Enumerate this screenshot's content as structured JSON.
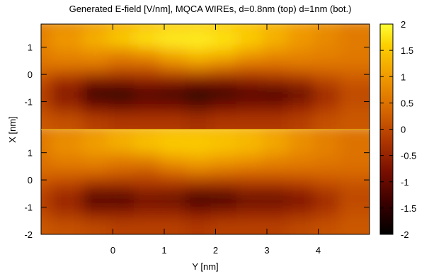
{
  "chart_data": {
    "type": "heatmap",
    "title": "Generated E-field [V/nm], MQCA WIREs, d=0.8nm (top) d=1nm (bot.)",
    "xlabel": "Y [nm]",
    "ylabel": "X [nm]",
    "colorbar": {
      "range": [
        -2,
        2
      ],
      "ticks": [
        "2",
        "1.5",
        "1",
        "0.5",
        "0",
        "-0.5",
        "-1",
        "-1.5",
        "-2"
      ],
      "palette": "black-red-orange-yellow"
    },
    "x_ticks": [
      "0",
      "1",
      "2",
      "3",
      "4"
    ],
    "x_tick_values": [
      0,
      1,
      2,
      3,
      4
    ],
    "xlim": [
      -1.4,
      5.0
    ],
    "panels": [
      {
        "name": "d=0.8nm (top)",
        "y_ticks": [
          "1",
          "0",
          "-1",
          "-2"
        ],
        "y_tick_values": [
          1,
          0,
          -1,
          -2
        ],
        "ylim": [
          -2,
          1.85
        ],
        "rows_y": [
          1.5,
          1.0,
          0.5,
          0.0,
          -0.5,
          -1.0,
          -1.5,
          -2.0
        ],
        "cols_x": [
          -1.25,
          -0.5,
          0.0,
          0.5,
          1.0,
          1.5,
          2.0,
          2.5,
          3.0,
          3.5,
          4.0,
          4.5,
          5.0
        ],
        "values": [
          [
            0.6,
            0.8,
            1.0,
            1.2,
            1.35,
            1.5,
            1.55,
            1.5,
            1.4,
            1.2,
            1.0,
            0.8,
            0.6
          ],
          [
            0.7,
            1.0,
            1.3,
            1.6,
            1.8,
            1.9,
            1.9,
            1.8,
            1.6,
            1.3,
            1.0,
            0.8,
            0.6
          ],
          [
            0.6,
            0.8,
            0.9,
            0.8,
            1.0,
            1.3,
            1.5,
            1.4,
            1.1,
            0.9,
            0.8,
            0.7,
            0.6
          ],
          [
            0.5,
            0.5,
            0.5,
            0.3,
            0.3,
            0.6,
            0.8,
            0.6,
            0.4,
            0.4,
            0.5,
            0.5,
            0.5
          ],
          [
            0.1,
            -0.3,
            -0.6,
            -0.6,
            -0.5,
            -0.5,
            -0.6,
            -0.6,
            -0.5,
            -0.4,
            -0.3,
            0.0,
            0.2
          ],
          [
            -0.1,
            -0.7,
            -1.6,
            -1.7,
            -1.2,
            -1.4,
            -1.9,
            -1.5,
            -1.2,
            -1.3,
            -1.0,
            -0.4,
            0.0
          ],
          [
            0.0,
            -0.4,
            -0.8,
            -0.9,
            -0.8,
            -0.8,
            -1.0,
            -0.8,
            -0.7,
            -0.7,
            -0.5,
            -0.2,
            0.1
          ],
          [
            0.2,
            0.1,
            -0.1,
            -0.2,
            -0.2,
            -0.2,
            -0.3,
            -0.2,
            -0.2,
            -0.2,
            -0.1,
            0.1,
            0.2
          ]
        ]
      },
      {
        "name": "d=1nm (bot.)",
        "y_ticks": [
          "1",
          "0",
          "-1",
          "-2"
        ],
        "y_tick_values": [
          1,
          0,
          -1,
          -2
        ],
        "ylim": [
          -2,
          1.85
        ],
        "rows_y": [
          1.5,
          1.0,
          0.5,
          0.0,
          -0.5,
          -1.0,
          -1.5,
          -2.0
        ],
        "cols_x": [
          -1.25,
          -0.5,
          0.0,
          0.5,
          1.0,
          1.5,
          2.0,
          2.5,
          3.0,
          3.5,
          4.0,
          4.5,
          5.0
        ],
        "values": [
          [
            0.5,
            0.7,
            0.9,
            1.1,
            1.2,
            1.3,
            1.3,
            1.3,
            1.2,
            1.0,
            0.8,
            0.6,
            0.5
          ],
          [
            0.6,
            0.9,
            1.1,
            1.3,
            1.5,
            1.6,
            1.6,
            1.5,
            1.4,
            1.2,
            0.9,
            0.7,
            0.5
          ],
          [
            0.5,
            0.7,
            0.8,
            0.7,
            0.8,
            1.1,
            1.2,
            1.1,
            1.0,
            0.8,
            0.7,
            0.6,
            0.5
          ],
          [
            0.4,
            0.4,
            0.4,
            0.3,
            0.2,
            0.4,
            0.6,
            0.5,
            0.4,
            0.4,
            0.4,
            0.4,
            0.4
          ],
          [
            0.1,
            -0.1,
            -0.4,
            -0.4,
            -0.3,
            -0.3,
            -0.4,
            -0.4,
            -0.3,
            -0.3,
            -0.2,
            0.0,
            0.1
          ],
          [
            -0.1,
            -0.5,
            -1.3,
            -1.3,
            -0.9,
            -1.0,
            -1.5,
            -1.4,
            -1.0,
            -1.0,
            -0.8,
            -0.4,
            0.0
          ],
          [
            0.0,
            -0.3,
            -0.6,
            -0.6,
            -0.5,
            -0.5,
            -0.7,
            -0.6,
            -0.5,
            -0.5,
            -0.4,
            -0.2,
            0.1
          ],
          [
            0.2,
            0.1,
            0.0,
            -0.1,
            -0.1,
            -0.1,
            -0.2,
            -0.1,
            -0.1,
            -0.1,
            0.0,
            0.1,
            0.2
          ]
        ]
      }
    ]
  }
}
